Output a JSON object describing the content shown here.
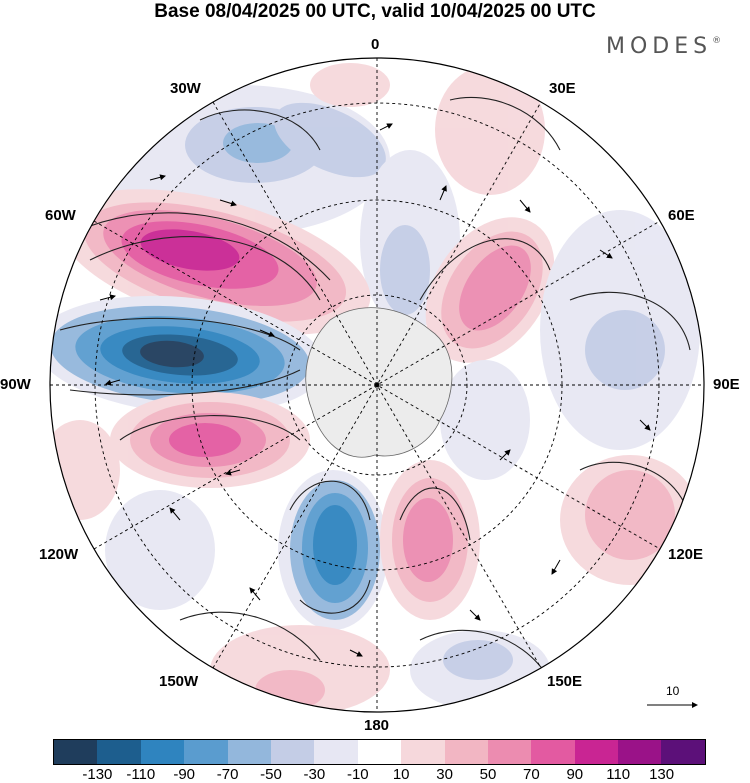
{
  "title": "Base 08/04/2025 00 UTC, valid 10/04/2025 00 UTC",
  "brand": {
    "name": "MODES",
    "mark": "®"
  },
  "map": {
    "projection": "south polar stereographic",
    "meridian_labels": {
      "lon0": "0",
      "lon30e": "30E",
      "lon60e": "60E",
      "lon90e": "90E",
      "lon120e": "120E",
      "lon150e": "150E",
      "lon180": "180",
      "lon150w": "150W",
      "lon120w": "120W",
      "lon90w": "90W",
      "lon60w": "60W",
      "lon30w": "30W"
    },
    "vector_scale_label": "10"
  },
  "colorbar": {
    "colors": [
      "#1f3d5c",
      "#1d5e8e",
      "#2f84bf",
      "#5a9ccf",
      "#93b7dc",
      "#c4cde6",
      "#e7e7f3",
      "#ffffff",
      "#f6d8dc",
      "#f2b6c3",
      "#ec8cb0",
      "#e35aa1",
      "#c92593",
      "#9a1288",
      "#5c1079"
    ],
    "ticks": [
      "-130",
      "-110",
      "-90",
      "-70",
      "-50",
      "-30",
      "-10",
      "10",
      "30",
      "50",
      "70",
      "90",
      "110",
      "130"
    ]
  }
}
